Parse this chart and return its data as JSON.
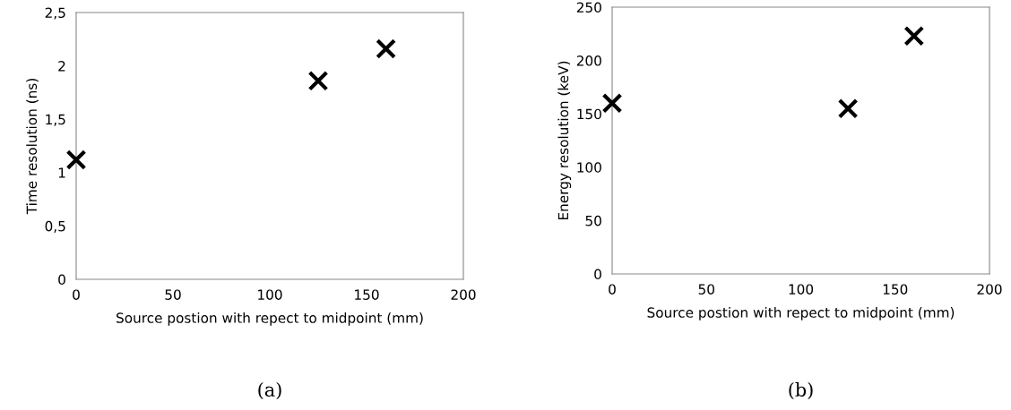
{
  "chart_data": [
    {
      "type": "scatter",
      "xlabel": "Source postion with repect to midpoint (mm)",
      "ylabel": "Time resolution (ns)",
      "x": [
        0,
        125,
        160
      ],
      "series": [
        {
          "color": "#000000",
          "values": [
            1.12,
            1.86,
            2.16
          ]
        }
      ],
      "xlim": [
        0,
        200
      ],
      "xticks": [
        0,
        50,
        100,
        150,
        200
      ],
      "ylim": [
        0,
        2.5
      ],
      "yticks": [
        0,
        {
          "value": 0.5,
          "label": "0,5"
        },
        1,
        {
          "value": 1.5,
          "label": "1,5"
        },
        2,
        {
          "value": 2.5,
          "label": "2,5"
        }
      ],
      "marker": "cross",
      "grid": false,
      "legend": false,
      "annotations": [
        "(a)"
      ]
    },
    {
      "type": "scatter",
      "xlabel": "Source postion with repect to midpoint (mm)",
      "ylabel": "Energy resolution (keV)",
      "x": [
        0,
        125,
        160
      ],
      "series": [
        {
          "color": "#000000",
          "values": [
            160,
            155,
            223
          ]
        }
      ],
      "xlim": [
        0,
        200
      ],
      "xticks": [
        0,
        50,
        100,
        150,
        200
      ],
      "ylim": [
        0,
        250
      ],
      "yticks": [
        0,
        50,
        100,
        150,
        200,
        250
      ],
      "marker": "cross",
      "grid": false,
      "legend": false,
      "annotations": [
        "(b)"
      ]
    }
  ]
}
